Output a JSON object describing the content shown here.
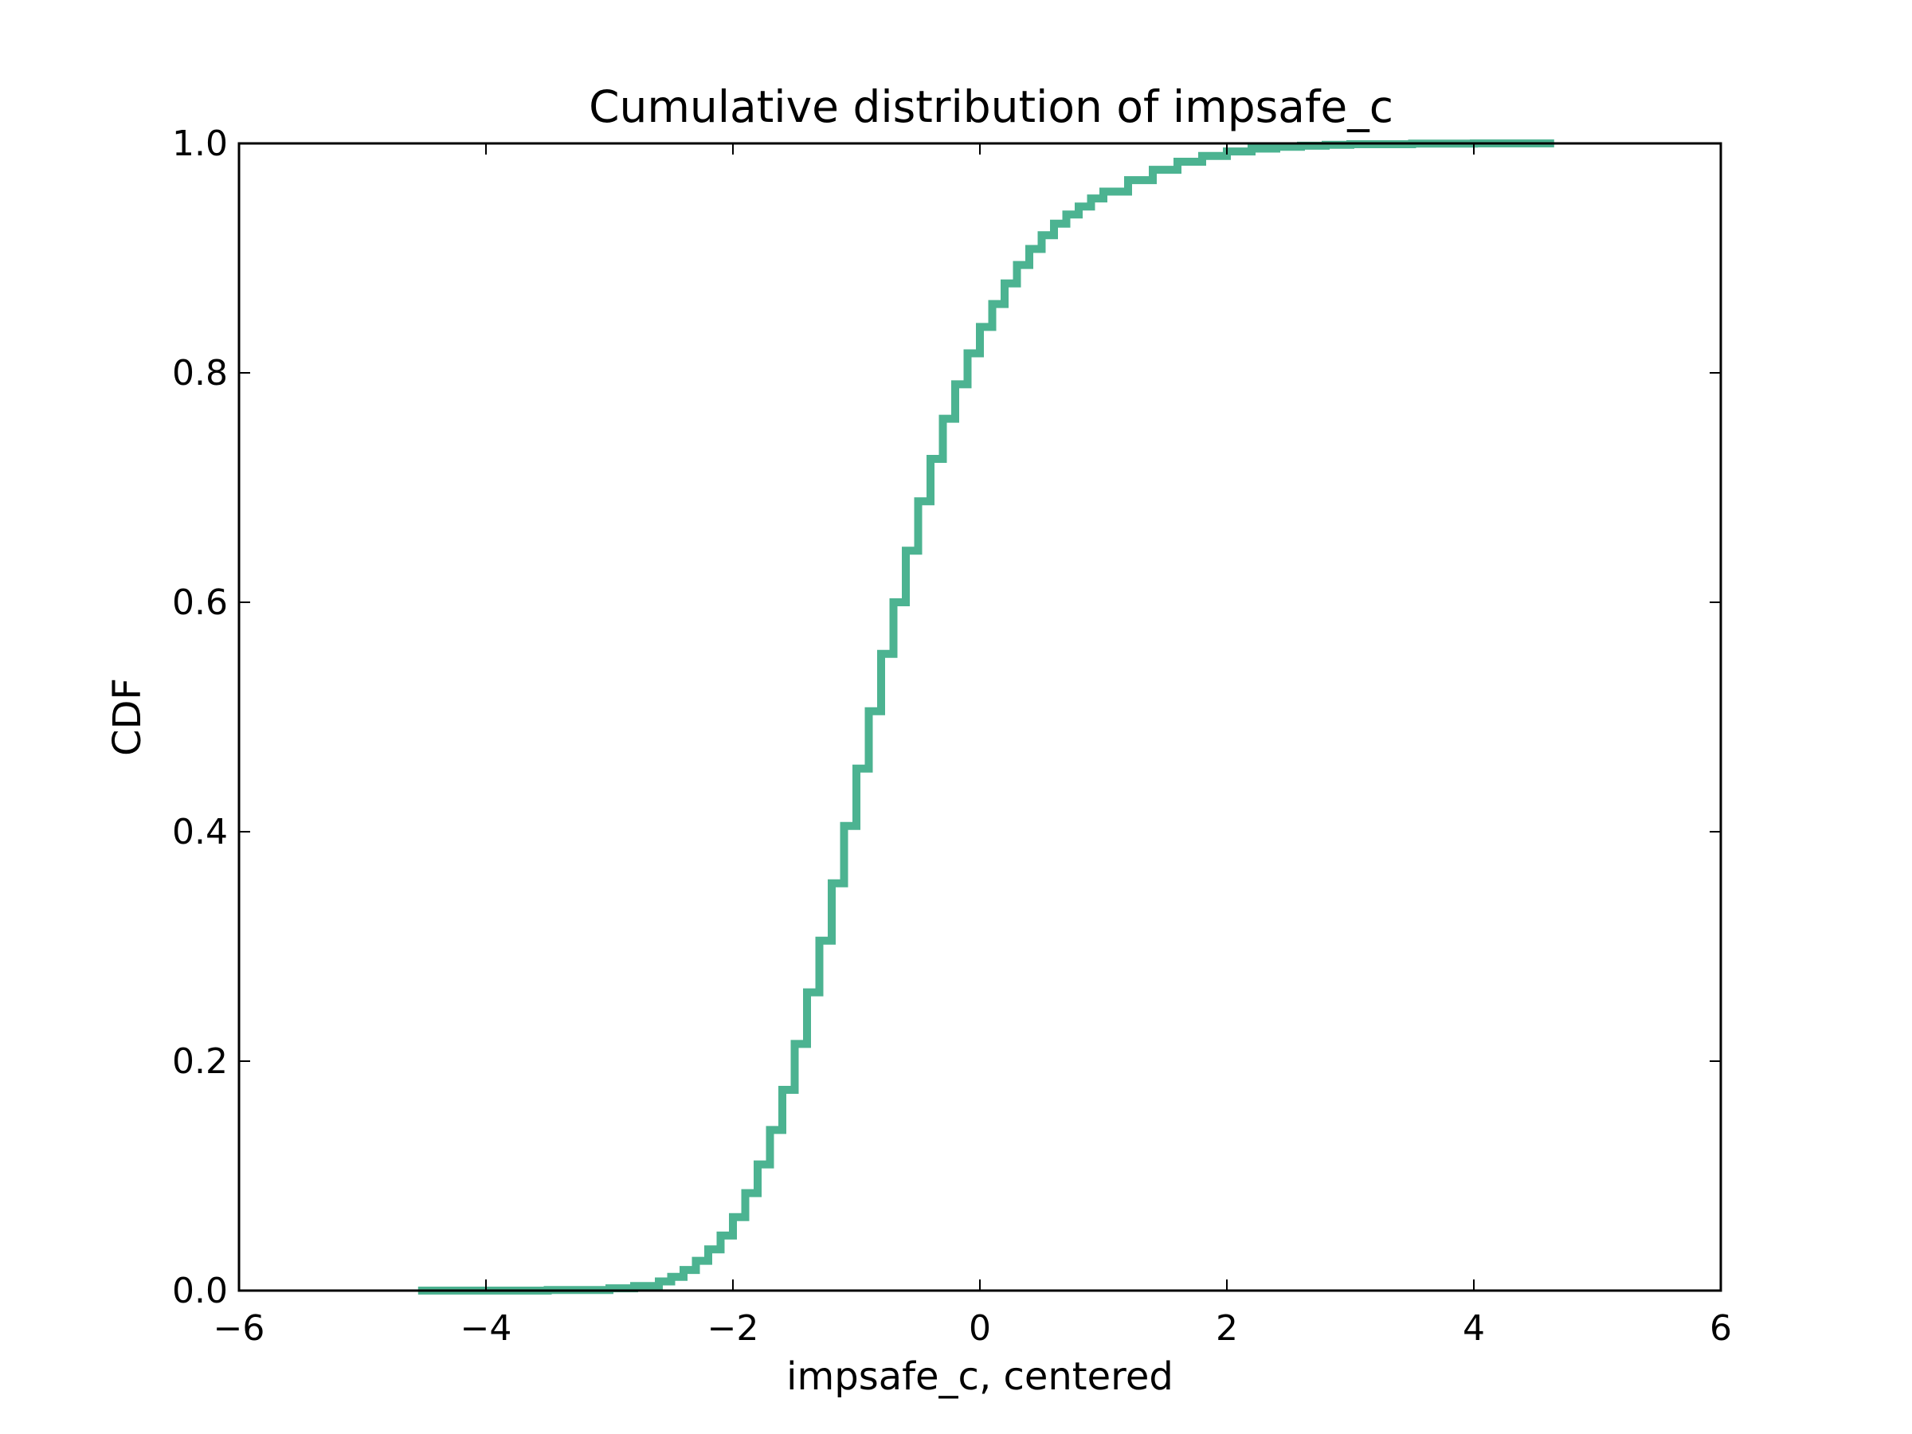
{
  "chart_data": {
    "type": "line",
    "title": "Cumulative distribution of impsafe_c",
    "xlabel": "impsafe_c, centered",
    "ylabel": "CDF",
    "xlim": [
      -6,
      6
    ],
    "ylim": [
      0.0,
      1.0
    ],
    "x_ticks": [
      -6,
      -4,
      -2,
      0,
      2,
      4,
      6
    ],
    "x_tick_labels": [
      "−6",
      "−4",
      "−2",
      "0",
      "2",
      "4",
      "6"
    ],
    "y_ticks": [
      0.0,
      0.2,
      0.4,
      0.6,
      0.8,
      1.0
    ],
    "y_tick_labels": [
      "0.0",
      "0.2",
      "0.4",
      "0.6",
      "0.8",
      "1.0"
    ],
    "grid": false,
    "legend": "none",
    "series": [
      {
        "color": "#4cb391",
        "drawstyle": "steps",
        "x": [
          -4.55,
          -4.0,
          -3.5,
          -3.0,
          -2.8,
          -2.6,
          -2.5,
          -2.4,
          -2.3,
          -2.2,
          -2.1,
          -2.0,
          -1.9,
          -1.8,
          -1.7,
          -1.6,
          -1.5,
          -1.4,
          -1.3,
          -1.2,
          -1.1,
          -1.0,
          -0.9,
          -0.8,
          -0.7,
          -0.6,
          -0.5,
          -0.4,
          -0.3,
          -0.2,
          -0.1,
          0.0,
          0.1,
          0.2,
          0.3,
          0.4,
          0.5,
          0.6,
          0.7,
          0.8,
          0.9,
          1.0,
          1.2,
          1.4,
          1.6,
          1.8,
          2.0,
          2.2,
          2.4,
          2.6,
          2.8,
          3.0,
          3.5,
          4.0,
          4.65
        ],
        "y": [
          0.0,
          0.0,
          0.0005,
          0.002,
          0.004,
          0.008,
          0.012,
          0.018,
          0.026,
          0.036,
          0.048,
          0.064,
          0.085,
          0.11,
          0.14,
          0.175,
          0.215,
          0.26,
          0.305,
          0.355,
          0.405,
          0.455,
          0.505,
          0.555,
          0.6,
          0.645,
          0.688,
          0.725,
          0.76,
          0.79,
          0.817,
          0.84,
          0.86,
          0.878,
          0.894,
          0.908,
          0.92,
          0.93,
          0.938,
          0.945,
          0.952,
          0.958,
          0.968,
          0.977,
          0.984,
          0.989,
          0.993,
          0.9955,
          0.997,
          0.998,
          0.9988,
          0.9993,
          0.9998,
          1.0,
          1.0
        ]
      }
    ]
  }
}
